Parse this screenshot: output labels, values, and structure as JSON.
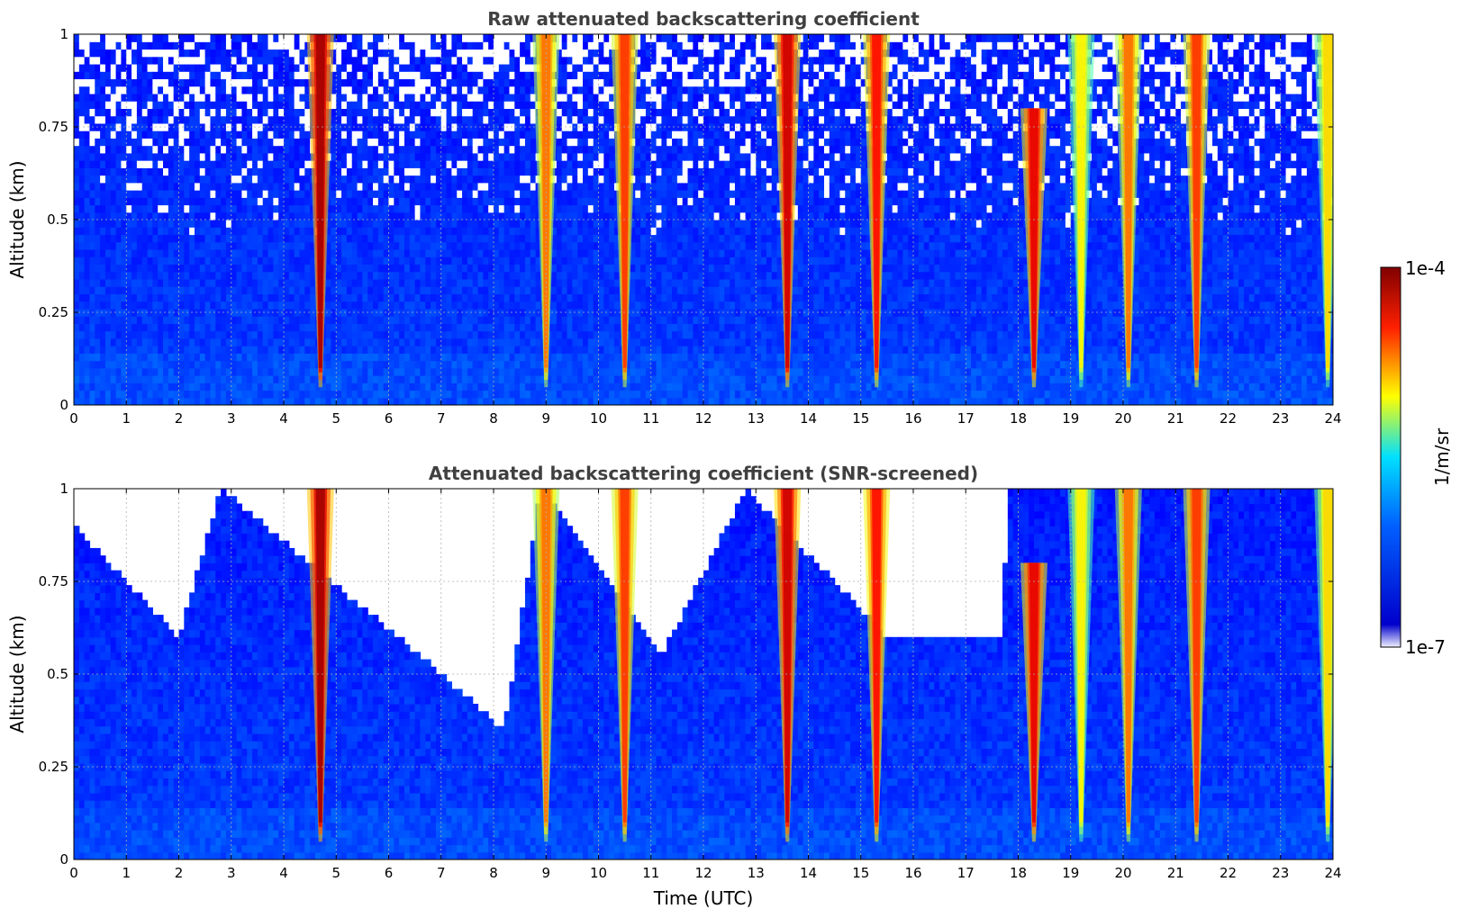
{
  "chart_data": [
    {
      "type": "heatmap",
      "title": "Raw attenuated backscattering coefficient",
      "xlabel": "",
      "ylabel": "Altitude (km)",
      "xlim": [
        0,
        24
      ],
      "ylim": [
        0,
        1
      ],
      "x_ticks": [
        "0",
        "1",
        "2",
        "3",
        "4",
        "5",
        "6",
        "7",
        "8",
        "9",
        "10",
        "11",
        "12",
        "13",
        "14",
        "15",
        "16",
        "17",
        "18",
        "19",
        "20",
        "21",
        "22",
        "23",
        "24"
      ],
      "y_ticks": [
        "0",
        "0.25",
        "0.5",
        "0.75",
        "1"
      ],
      "grid": true,
      "colormap": "jet",
      "color_scale": "log",
      "background_level_1_over_m_sr": 1e-06,
      "plumes": [
        {
          "time_utc": 4.7,
          "peak": 8e-05,
          "top_km": 1.0
        },
        {
          "time_utc": 9.0,
          "peak": 2e-05,
          "top_km": 1.0
        },
        {
          "time_utc": 10.5,
          "peak": 3e-05,
          "top_km": 1.0
        },
        {
          "time_utc": 13.6,
          "peak": 6e-05,
          "top_km": 1.0
        },
        {
          "time_utc": 15.3,
          "peak": 4e-05,
          "top_km": 1.0
        },
        {
          "time_utc": 18.3,
          "peak": 5e-05,
          "top_km": 0.8
        },
        {
          "time_utc": 19.2,
          "peak": 8e-06,
          "top_km": 1.0
        },
        {
          "time_utc": 20.1,
          "peak": 2e-05,
          "top_km": 1.0
        },
        {
          "time_utc": 21.4,
          "peak": 3e-05,
          "top_km": 1.0
        },
        {
          "time_utc": 23.9,
          "peak": 1e-05,
          "top_km": 1.0
        }
      ]
    },
    {
      "type": "heatmap",
      "title": "Attenuated backscattering coefficient (SNR-screened)",
      "xlabel": "Time (UTC)",
      "ylabel": "Altitude (km)",
      "xlim": [
        0,
        24
      ],
      "ylim": [
        0,
        1
      ],
      "x_ticks": [
        "0",
        "1",
        "2",
        "3",
        "4",
        "5",
        "6",
        "7",
        "8",
        "9",
        "10",
        "11",
        "12",
        "13",
        "14",
        "15",
        "16",
        "17",
        "18",
        "19",
        "20",
        "21",
        "22",
        "23",
        "24"
      ],
      "y_ticks": [
        "0",
        "0.25",
        "0.5",
        "0.75",
        "1"
      ],
      "grid": true,
      "colormap": "jet",
      "color_scale": "log",
      "screened_out_above_km": [
        {
          "time_utc": 0,
          "alt_km": 0.9
        },
        {
          "time_utc": 2,
          "alt_km": 0.6
        },
        {
          "time_utc": 2.8,
          "alt_km": 1.0
        },
        {
          "time_utc": 6.6,
          "alt_km": 0.55
        },
        {
          "time_utc": 8.2,
          "alt_km": 0.35
        },
        {
          "time_utc": 8.9,
          "alt_km": 1.0
        },
        {
          "time_utc": 11.2,
          "alt_km": 0.55
        },
        {
          "time_utc": 12.8,
          "alt_km": 1.0
        },
        {
          "time_utc": 15.5,
          "alt_km": 0.6
        },
        {
          "time_utc": 17.7,
          "alt_km": 0.6
        },
        {
          "time_utc": 17.8,
          "alt_km": 1.0
        },
        {
          "time_utc": 24,
          "alt_km": 1.0
        }
      ]
    }
  ],
  "colorbar": {
    "label": "1/m/sr",
    "max_label": "1e-4",
    "min_label": "1e-7",
    "scale": "log",
    "range": [
      1e-07,
      0.0001
    ],
    "colors": [
      "#f0f0ff",
      "#0000ff",
      "#00ffff",
      "#ffff00",
      "#ff0000",
      "#800000"
    ]
  }
}
